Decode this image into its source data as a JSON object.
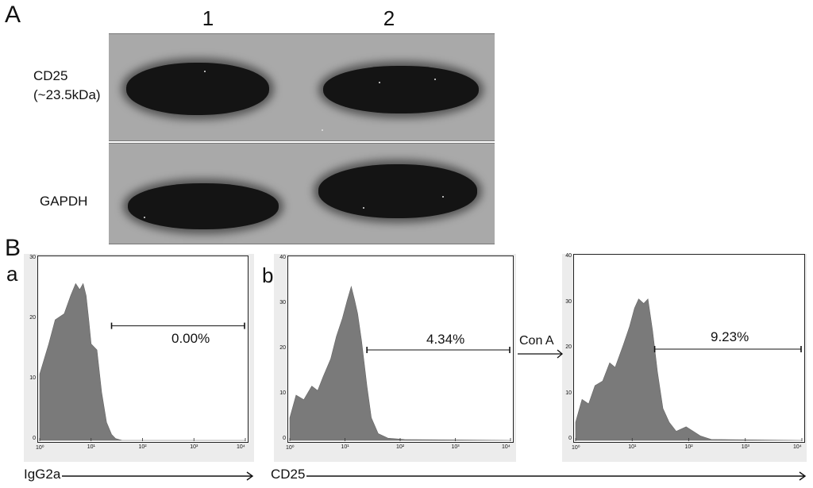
{
  "panels": {
    "A": "A",
    "B": "B",
    "a": "a",
    "b": "b"
  },
  "western_blot": {
    "lanes": [
      "1",
      "2"
    ],
    "rows": [
      {
        "label_line1": "CD25",
        "label_line2": "(~23.5kDa)"
      },
      {
        "label_line1": "GAPDH",
        "label_line2": ""
      }
    ]
  },
  "flow": {
    "con_a_label": "Con A",
    "axis_label_a": "IgG2a",
    "axis_label_b": "CD25",
    "plots": [
      {
        "ymax": 30,
        "yticks": [
          "0",
          "10",
          "20",
          "30"
        ],
        "gate_pct": "0.00%"
      },
      {
        "ymax": 40,
        "yticks": [
          "0",
          "10",
          "20",
          "30",
          "40"
        ],
        "gate_pct": "4.34%"
      },
      {
        "ymax": 40,
        "yticks": [
          "0",
          "10",
          "20",
          "30",
          "40"
        ],
        "gate_pct": "9.23%"
      }
    ],
    "xticks": [
      "10⁰",
      "10¹",
      "10²",
      "10³",
      "10⁴"
    ]
  },
  "chart_data": [
    {
      "type": "area",
      "ylim": [
        0,
        30
      ],
      "x_scale": "log",
      "xlim": [
        1,
        10000
      ],
      "x": [
        1,
        1.5,
        2,
        3,
        4,
        5,
        6,
        7,
        8,
        9,
        10,
        13,
        16,
        20,
        25,
        30,
        40,
        100,
        10000
      ],
      "y": [
        11,
        16,
        20,
        21,
        24,
        26,
        25,
        26,
        24,
        20,
        16,
        15,
        8,
        3,
        1,
        0.3,
        0,
        0,
        0
      ],
      "gate": {
        "x_start": 25,
        "x_end": 10000,
        "label": "0.00%"
      },
      "xlabel": "IgG2a"
    },
    {
      "type": "area",
      "ylim": [
        0,
        40
      ],
      "x_scale": "log",
      "xlim": [
        1,
        10000
      ],
      "x": [
        1,
        1.3,
        1.8,
        2.5,
        3.2,
        4,
        5.5,
        7,
        9,
        11,
        13,
        15,
        17,
        20,
        25,
        30,
        40,
        60,
        120,
        10000
      ],
      "y": [
        5,
        10,
        9,
        12,
        11,
        14,
        18,
        23,
        27,
        31,
        34,
        31,
        28,
        22,
        12,
        5,
        1.5,
        0.5,
        0.2,
        0
      ],
      "gate": {
        "x_start": 25,
        "x_end": 10000,
        "label": "4.34%"
      },
      "xlabel": "CD25"
    },
    {
      "type": "area",
      "ylim": [
        0,
        40
      ],
      "x_scale": "log",
      "xlim": [
        1,
        10000
      ],
      "x": [
        1,
        1.3,
        1.7,
        2.2,
        3,
        4,
        5,
        7,
        9,
        11,
        13,
        16,
        19,
        23,
        28,
        35,
        45,
        60,
        90,
        120,
        160,
        250,
        10000
      ],
      "y": [
        4,
        9,
        8,
        12,
        13,
        17,
        16,
        21,
        25,
        29,
        31,
        30,
        31,
        24,
        15,
        7,
        4,
        2,
        3,
        2,
        1,
        0.2,
        0
      ],
      "gate": {
        "x_start": 25,
        "x_end": 10000,
        "label": "9.23%"
      },
      "xlabel": "CD25"
    }
  ]
}
